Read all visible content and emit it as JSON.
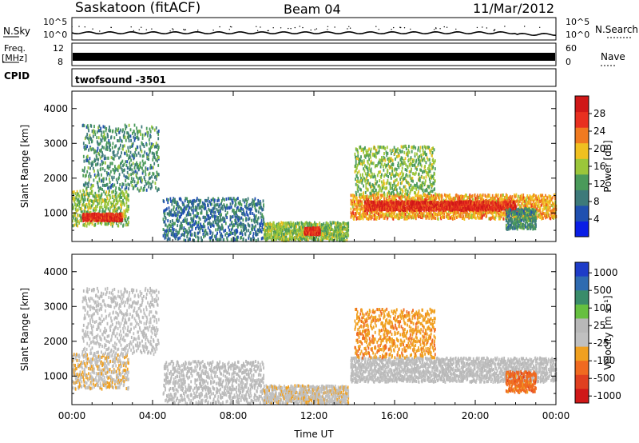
{
  "header": {
    "station": "Saskatoon (fitACF)",
    "beam": "Beam 04",
    "date": "11/Mar/2012"
  },
  "aux_panels": {
    "nsky_label": "N.Sky",
    "nsearch_label": "N.Search",
    "noise_ticks": [
      "10^5",
      "10^0"
    ],
    "freq_label_1": "Freq.",
    "freq_label_2": "[MHz]",
    "freq_ticks": [
      "12",
      "8"
    ],
    "nave_label": "Nave",
    "nave_ticks": [
      "60",
      "0"
    ],
    "cpid_label": "CPID",
    "cpid_value": "twofsound -3501"
  },
  "colors": {
    "power_scale": [
      "#0a1ee6",
      "#2050b0",
      "#3d7a7a",
      "#4a9a5a",
      "#9bc63a",
      "#f0c020",
      "#f07a20",
      "#e83020",
      "#d01818"
    ],
    "velocity_scale": [
      "#1e3cc8",
      "#2f6bb0",
      "#3a8c6a",
      "#66c040",
      "#b8b8b8",
      "#c0c0c0",
      "#f0a020",
      "#f06a20",
      "#e04020",
      "#d01818"
    ]
  },
  "chart_data": [
    {
      "type": "heatmap",
      "name": "power-panel",
      "xlabel": "",
      "ylabel": "Slant Range [km]",
      "xlim": [
        "00:00",
        "24:00"
      ],
      "ylim": [
        180,
        4500
      ],
      "yticks": [
        "1000",
        "2000",
        "3000",
        "4000"
      ],
      "colorbar": {
        "label": "Power [dB]",
        "ticks": [
          "4",
          "8",
          "12",
          "16",
          "20",
          "24",
          "28"
        ],
        "range": [
          0,
          30
        ]
      },
      "regions": [
        {
          "t0": 0.0,
          "t1": 2.8,
          "r0": 600,
          "r1": 1600,
          "value": 14
        },
        {
          "t0": 0.5,
          "t1": 2.5,
          "r0": 750,
          "r1": 950,
          "value": 26
        },
        {
          "t0": 0.5,
          "t1": 4.3,
          "r0": 1600,
          "r1": 3500,
          "value": 10
        },
        {
          "t0": 4.5,
          "t1": 9.5,
          "r0": 180,
          "r1": 1400,
          "value": 8
        },
        {
          "t0": 9.5,
          "t1": 13.7,
          "r0": 180,
          "r1": 700,
          "value": 14
        },
        {
          "t0": 11.5,
          "t1": 12.3,
          "r0": 350,
          "r1": 550,
          "value": 26
        },
        {
          "t0": 13.8,
          "t1": 24.0,
          "r0": 800,
          "r1": 1500,
          "value": 20
        },
        {
          "t0": 14.5,
          "t1": 22.0,
          "r0": 1050,
          "r1": 1300,
          "value": 26
        },
        {
          "t0": 14.0,
          "t1": 18.0,
          "r0": 1500,
          "r1": 2900,
          "value": 14
        },
        {
          "t0": 21.5,
          "t1": 23.0,
          "r0": 500,
          "r1": 1100,
          "value": 10
        }
      ]
    },
    {
      "type": "heatmap",
      "name": "velocity-panel",
      "xlabel": "Time UT",
      "ylabel": "Slant Range [km]",
      "xlim": [
        "00:00",
        "24:00"
      ],
      "ylim": [
        180,
        4500
      ],
      "yticks": [
        "1000",
        "2000",
        "3000",
        "4000"
      ],
      "xticks": [
        "00:00",
        "04:00",
        "08:00",
        "12:00",
        "16:00",
        "20:00",
        "00:00"
      ],
      "colorbar": {
        "label": "Velocity [m s⁻¹]",
        "ticks": [
          "1000",
          "500",
          "100",
          "25",
          "-25",
          "-100",
          "-500",
          "-1000"
        ],
        "range": [
          -1200,
          1200
        ]
      },
      "regions": [
        {
          "t0": 0.0,
          "t1": 2.8,
          "r0": 600,
          "r1": 1600,
          "value": -200
        },
        {
          "t0": 0.5,
          "t1": 4.3,
          "r0": 1600,
          "r1": 3500,
          "value": 0
        },
        {
          "t0": 4.5,
          "t1": 9.5,
          "r0": 180,
          "r1": 1400,
          "value": 50
        },
        {
          "t0": 9.5,
          "t1": 13.7,
          "r0": 180,
          "r1": 700,
          "value": -150
        },
        {
          "t0": 13.8,
          "t1": 24.0,
          "r0": 800,
          "r1": 1500,
          "value": 0
        },
        {
          "t0": 14.0,
          "t1": 18.0,
          "r0": 1500,
          "r1": 2900,
          "value": -400
        },
        {
          "t0": 21.5,
          "t1": 23.0,
          "r0": 500,
          "r1": 1100,
          "value": -600
        }
      ]
    }
  ]
}
